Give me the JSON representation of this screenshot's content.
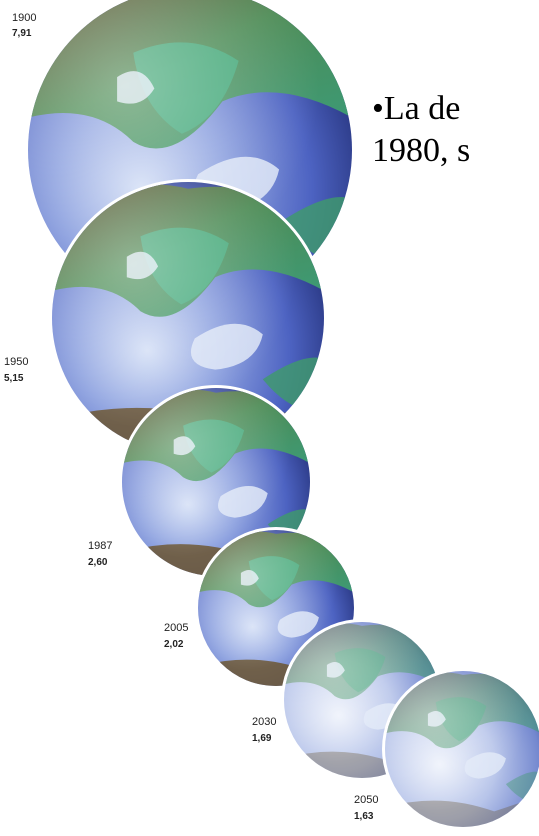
{
  "slide_text": {
    "line1": "•La de",
    "line2": "1980, s"
  },
  "globes": [
    {
      "year": "1900",
      "value": "7,91"
    },
    {
      "year": "1950",
      "value": "5,15"
    },
    {
      "year": "1987",
      "value": "2,60"
    },
    {
      "year": "2005",
      "value": "2,02"
    },
    {
      "year": "2030",
      "value": "1,69"
    },
    {
      "year": "2050",
      "value": "1,63"
    }
  ],
  "colors": {
    "ocean_light": "#c9d7f4",
    "ocean_mid": "#4e66c4",
    "ocean_dark": "#22307a",
    "land_green": "#3f9b6a",
    "land_brown": "#6b5530",
    "ice": "#dfe8f7"
  }
}
